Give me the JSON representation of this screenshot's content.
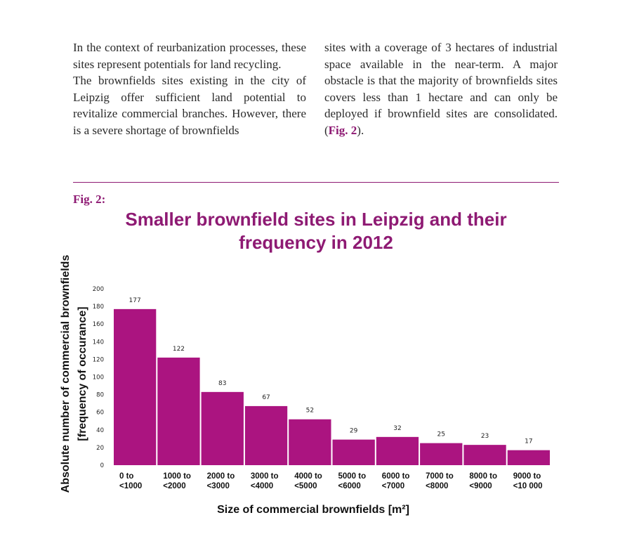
{
  "text": {
    "left_paragraph_1": "In the context of reurbanization processes, these sites represent potentials for land recycling.",
    "left_paragraph_2": "The brownfields sites existing in the city of Leipzig offer sufficient land potential to revitalize commercial branches. However, there is a severe shortage of brownfields",
    "right_paragraph": "sites with a coverage of 3 hectares of industrial space available in the near-term. A major obstacle is that the majority of brownfields sites covers less than 1 hectare and can only be deployed if brownfield sites are consolidated.",
    "right_ref_open": " (",
    "right_ref": "Fig. 2",
    "right_ref_close": ")."
  },
  "figure": {
    "label": "Fig. 2:"
  },
  "colors": {
    "accent": "#8e1a73",
    "bar": "#ab1480"
  },
  "chart_data": {
    "type": "bar",
    "title": "Smaller brownfield sites in Leipzig and their frequency in 2012",
    "xlabel": "Size of commercial brownfields [m²]",
    "ylabel_line1": "Absolute number of commercial brownfields",
    "ylabel_line2": "[frequency of occurance]",
    "categories": [
      [
        "0 to",
        "<1000"
      ],
      [
        "1000 to",
        "<2000"
      ],
      [
        "2000 to",
        "<3000"
      ],
      [
        "3000 to",
        "<4000"
      ],
      [
        "4000 to",
        "<5000"
      ],
      [
        "5000 to",
        "<6000"
      ],
      [
        "6000 to",
        "<7000"
      ],
      [
        "7000 to",
        "<8000"
      ],
      [
        "8000 to",
        "<9000"
      ],
      [
        "9000 to",
        "<10 000"
      ]
    ],
    "values": [
      177,
      122,
      83,
      67,
      52,
      29,
      32,
      25,
      23,
      17
    ],
    "yticks": [
      0,
      20,
      40,
      60,
      80,
      100,
      120,
      140,
      160,
      180,
      200
    ],
    "ylim": [
      0,
      200
    ],
    "grid": false,
    "data_labels": true
  }
}
